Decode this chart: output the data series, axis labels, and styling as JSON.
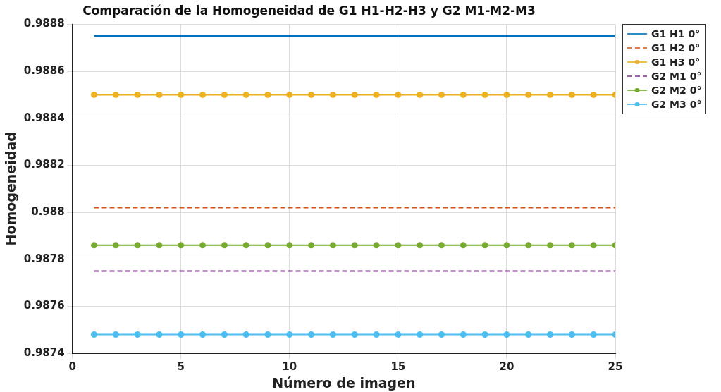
{
  "chart_data": {
    "type": "line",
    "title": "Comparación de la Homogeneidad de G1 H1-H2-H3 y G2 M1-M2-M3",
    "xlabel": "Número de imagen",
    "ylabel": "Homogeneidad",
    "x": [
      1,
      2,
      3,
      4,
      5,
      6,
      7,
      8,
      9,
      10,
      11,
      12,
      13,
      14,
      15,
      16,
      17,
      18,
      19,
      20,
      21,
      22,
      23,
      24,
      25
    ],
    "xlim": [
      0,
      25
    ],
    "xticks": [
      0,
      5,
      10,
      15,
      20,
      25
    ],
    "ylim": [
      0.9874,
      0.9888
    ],
    "yticks": [
      0.9874,
      0.9876,
      0.9878,
      0.988,
      0.9882,
      0.9884,
      0.9886,
      0.9888
    ],
    "grid": true,
    "legend": "right",
    "series": [
      {
        "name": "G1 H1 0°",
        "color": "#0072bd",
        "marker": "none",
        "line_style": "solid",
        "values": [
          0.98875,
          0.98875,
          0.98875,
          0.98875,
          0.98875,
          0.98875,
          0.98875,
          0.98875,
          0.98875,
          0.98875,
          0.98875,
          0.98875,
          0.98875,
          0.98875,
          0.98875,
          0.98875,
          0.98875,
          0.98875,
          0.98875,
          0.98875,
          0.98875,
          0.98875,
          0.98875,
          0.98875,
          0.98875
        ]
      },
      {
        "name": "G1 H2 0°",
        "color": "#d95319",
        "marker": "none",
        "line_style": "dashed",
        "values": [
          0.98802,
          0.98802,
          0.98802,
          0.98802,
          0.98802,
          0.98802,
          0.98802,
          0.98802,
          0.98802,
          0.98802,
          0.98802,
          0.98802,
          0.98802,
          0.98802,
          0.98802,
          0.98802,
          0.98802,
          0.98802,
          0.98802,
          0.98802,
          0.98802,
          0.98802,
          0.98802,
          0.98802,
          0.98802
        ]
      },
      {
        "name": "G1 H3 0°",
        "color": "#edb120",
        "marker": "circle",
        "line_style": "solid",
        "values": [
          0.9885,
          0.9885,
          0.9885,
          0.9885,
          0.9885,
          0.9885,
          0.9885,
          0.9885,
          0.9885,
          0.9885,
          0.9885,
          0.9885,
          0.9885,
          0.9885,
          0.9885,
          0.9885,
          0.9885,
          0.9885,
          0.9885,
          0.9885,
          0.9885,
          0.9885,
          0.9885,
          0.9885,
          0.9885
        ]
      },
      {
        "name": "G2 M1 0°",
        "color": "#7e2f8e",
        "marker": "none",
        "line_style": "dashed",
        "values": [
          0.98775,
          0.98775,
          0.98775,
          0.98775,
          0.98775,
          0.98775,
          0.98775,
          0.98775,
          0.98775,
          0.98775,
          0.98775,
          0.98775,
          0.98775,
          0.98775,
          0.98775,
          0.98775,
          0.98775,
          0.98775,
          0.98775,
          0.98775,
          0.98775,
          0.98775,
          0.98775,
          0.98775,
          0.98775
        ]
      },
      {
        "name": "G2 M2 0°",
        "color": "#77ac30",
        "marker": "circle",
        "line_style": "solid",
        "values": [
          0.98786,
          0.98786,
          0.98786,
          0.98786,
          0.98786,
          0.98786,
          0.98786,
          0.98786,
          0.98786,
          0.98786,
          0.98786,
          0.98786,
          0.98786,
          0.98786,
          0.98786,
          0.98786,
          0.98786,
          0.98786,
          0.98786,
          0.98786,
          0.98786,
          0.98786,
          0.98786,
          0.98786,
          0.98786
        ]
      },
      {
        "name": "G2 M3 0°",
        "color": "#4dbeee",
        "marker": "circle",
        "line_style": "solid",
        "values": [
          0.98748,
          0.98748,
          0.98748,
          0.98748,
          0.98748,
          0.98748,
          0.98748,
          0.98748,
          0.98748,
          0.98748,
          0.98748,
          0.98748,
          0.98748,
          0.98748,
          0.98748,
          0.98748,
          0.98748,
          0.98748,
          0.98748,
          0.98748,
          0.98748,
          0.98748,
          0.98748,
          0.98748,
          0.98748
        ]
      }
    ]
  }
}
